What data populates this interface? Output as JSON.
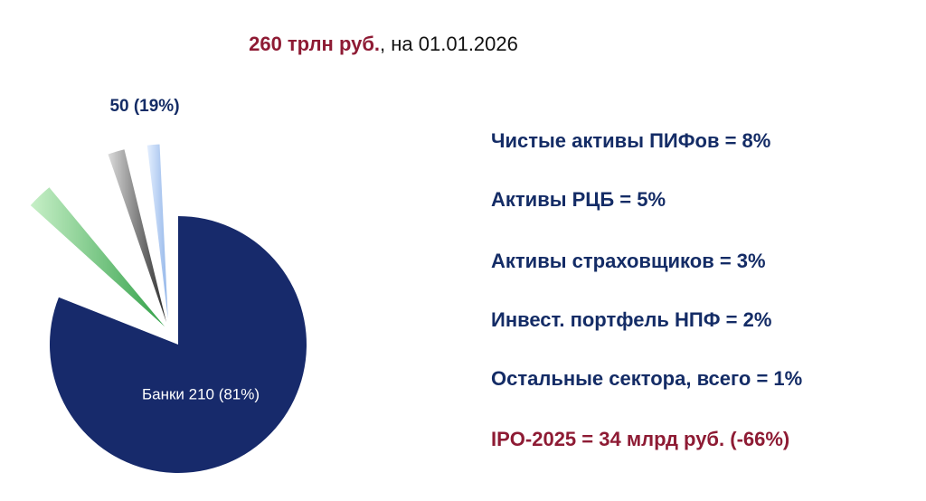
{
  "chart_data": {
    "type": "pie",
    "title": "260 трлн руб.",
    "subtitle": ", на 01.01.2026",
    "values": [
      81,
      19
    ],
    "value_labels": [
      "Банки 210 (81%)",
      "50 (19%)"
    ],
    "colors": [
      "#172a6b",
      "#4caf50"
    ]
  },
  "notes": [
    {
      "text": "Чистые активы ПИФов = 8%",
      "color": "#142c66"
    },
    {
      "text": "Активы РЦБ = 5%",
      "color": "#142c66"
    },
    {
      "text": "Активы страховщиков = 3%",
      "color": "#142c66"
    },
    {
      "text": "Инвест. портфель НПФ = 2%",
      "color": "#142c66"
    },
    {
      "text": "Остальные сектора, всего = 1%",
      "color": "#142c66"
    },
    {
      "text": "IPO-2025 = 34 млрд руб. (-66%)",
      "color": "#8e1b34"
    }
  ]
}
